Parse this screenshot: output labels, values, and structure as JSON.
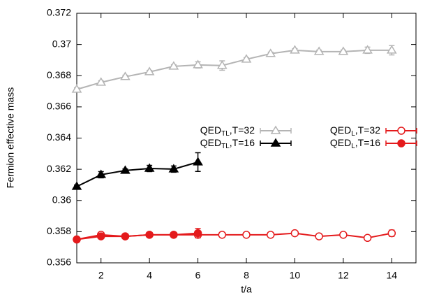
{
  "chart_data": {
    "type": "line",
    "x_label": "t/a",
    "y_label": "Fermion effective mass",
    "xlim": [
      1,
      15
    ],
    "xticks": [
      2,
      4,
      6,
      8,
      10,
      12,
      14
    ],
    "ylim": [
      0.356,
      0.372
    ],
    "yticks": [
      0.356,
      0.358,
      0.36,
      0.362,
      0.364,
      0.366,
      0.368,
      0.37,
      0.372
    ],
    "grid": false,
    "series": [
      {
        "name": "QEDTL,T=32",
        "color": "#b4b4b4",
        "marker": "triangle",
        "filled": false,
        "x": [
          1,
          2,
          3,
          4,
          5,
          6,
          7,
          8,
          9,
          10,
          11,
          12,
          13,
          14
        ],
        "values": [
          0.36712,
          0.36757,
          0.36793,
          0.36824,
          0.3686,
          0.36869,
          0.36865,
          0.36905,
          0.36941,
          0.36963,
          0.36954,
          0.36954,
          0.36963,
          0.36963
        ],
        "errors": [
          0.0001,
          0.0001,
          0.0001,
          0.0001,
          0.0001,
          0.0002,
          0.0003,
          0.0001,
          0.0001,
          0.0001,
          0.0001,
          0.0001,
          0.0002,
          0.0003
        ]
      },
      {
        "name": "QEDTL,T=16",
        "color": "#000000",
        "marker": "triangle",
        "filled": true,
        "x": [
          1,
          2,
          3,
          4,
          5,
          6
        ],
        "values": [
          0.36089,
          0.36165,
          0.36192,
          0.36205,
          0.36201,
          0.36246
        ],
        "errors": [
          0.0001,
          0.0002,
          0.0001,
          0.0002,
          0.0002,
          0.0006
        ]
      },
      {
        "name": "QEDL,T=32",
        "color": "#e41a1c",
        "marker": "circle",
        "filled": false,
        "x": [
          1,
          2,
          3,
          4,
          5,
          6,
          7,
          8,
          9,
          10,
          11,
          12,
          13,
          14
        ],
        "values": [
          0.3575,
          0.3578,
          0.3577,
          0.3578,
          0.3578,
          0.3578,
          0.3578,
          0.3578,
          0.3578,
          0.3579,
          0.3577,
          0.3578,
          0.3576,
          0.3579
        ],
        "errors": [
          0.0001,
          0.0001,
          0.0001,
          0.0001,
          0.0001,
          0.0001,
          0.0001,
          0.0001,
          0.0001,
          0.0001,
          0.0001,
          0.0001,
          0.0001,
          0.0002
        ]
      },
      {
        "name": "QEDL,T=16",
        "color": "#e41a1c",
        "marker": "circle",
        "filled": true,
        "x": [
          1,
          2,
          3,
          4,
          5,
          6
        ],
        "values": [
          0.3575,
          0.3577,
          0.3577,
          0.3578,
          0.3578,
          0.3579
        ],
        "errors": [
          0.0001,
          0.0001,
          0.0001,
          0.0001,
          0.0001,
          0.0003
        ]
      }
    ]
  }
}
